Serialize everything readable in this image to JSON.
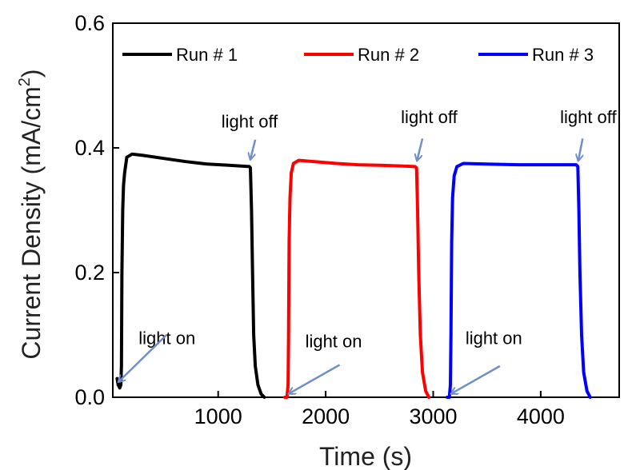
{
  "chart_data": {
    "type": "line",
    "title": "",
    "xlabel": "Time (s)",
    "ylabel": {
      "main": "Current Density (mA/cm",
      "sup": "2",
      "close": ")"
    },
    "xlim": [
      20,
      4730
    ],
    "ylim": [
      0.0,
      0.6
    ],
    "xticks": [
      1000,
      2000,
      3000,
      4000
    ],
    "yticks": [
      0.0,
      0.2,
      0.4,
      0.6
    ],
    "xtick_labels": [
      "1000",
      "2000",
      "3000",
      "4000"
    ],
    "ytick_labels": [
      "0.0",
      "0.2",
      "0.4",
      "0.6"
    ],
    "grid": false,
    "legend_position": "top",
    "series": [
      {
        "name": "Run # 1",
        "color": "#000000",
        "points": [
          [
            60,
            0.03
          ],
          [
            70,
            0.02
          ],
          [
            85,
            0.015
          ],
          [
            95,
            0.02
          ],
          [
            100,
            0.05
          ],
          [
            105,
            0.2
          ],
          [
            112,
            0.3
          ],
          [
            120,
            0.34
          ],
          [
            130,
            0.36
          ],
          [
            150,
            0.385
          ],
          [
            200,
            0.39
          ],
          [
            300,
            0.388
          ],
          [
            500,
            0.383
          ],
          [
            700,
            0.378
          ],
          [
            900,
            0.374
          ],
          [
            1100,
            0.372
          ],
          [
            1290,
            0.37
          ],
          [
            1300,
            0.368
          ],
          [
            1310,
            0.3
          ],
          [
            1320,
            0.2
          ],
          [
            1330,
            0.1
          ],
          [
            1345,
            0.05
          ],
          [
            1370,
            0.02
          ],
          [
            1400,
            0.005
          ],
          [
            1430,
            0.0
          ]
        ]
      },
      {
        "name": "Run # 2",
        "color": "#ff0000",
        "points": [
          [
            1620,
            0.0
          ],
          [
            1640,
            0.0
          ],
          [
            1650,
            0.02
          ],
          [
            1655,
            0.1
          ],
          [
            1660,
            0.25
          ],
          [
            1668,
            0.32
          ],
          [
            1680,
            0.36
          ],
          [
            1700,
            0.375
          ],
          [
            1750,
            0.38
          ],
          [
            1900,
            0.378
          ],
          [
            2100,
            0.375
          ],
          [
            2300,
            0.373
          ],
          [
            2500,
            0.372
          ],
          [
            2700,
            0.371
          ],
          [
            2830,
            0.37
          ],
          [
            2845,
            0.368
          ],
          [
            2855,
            0.3
          ],
          [
            2865,
            0.2
          ],
          [
            2880,
            0.1
          ],
          [
            2900,
            0.04
          ],
          [
            2930,
            0.01
          ],
          [
            2960,
            0.0
          ]
        ]
      },
      {
        "name": "Run # 3",
        "color": "#0000ff",
        "points": [
          [
            3130,
            0.0
          ],
          [
            3150,
            0.0
          ],
          [
            3160,
            0.02
          ],
          [
            3165,
            0.1
          ],
          [
            3172,
            0.25
          ],
          [
            3180,
            0.32
          ],
          [
            3195,
            0.355
          ],
          [
            3220,
            0.37
          ],
          [
            3280,
            0.375
          ],
          [
            3500,
            0.374
          ],
          [
            3800,
            0.373
          ],
          [
            4100,
            0.373
          ],
          [
            4330,
            0.373
          ],
          [
            4345,
            0.37
          ],
          [
            4355,
            0.3
          ],
          [
            4365,
            0.2
          ],
          [
            4380,
            0.1
          ],
          [
            4400,
            0.04
          ],
          [
            4430,
            0.01
          ],
          [
            4460,
            0.0
          ]
        ]
      }
    ],
    "annotations": [
      {
        "text": "light off",
        "x": 1030,
        "y": 0.433,
        "arrow_from": [
          1345,
          0.413
        ],
        "arrow_to": [
          1300,
          0.382
        ]
      },
      {
        "text": "light off",
        "x": 2700,
        "y": 0.44,
        "arrow_from": [
          2900,
          0.415
        ],
        "arrow_to": [
          2850,
          0.38
        ]
      },
      {
        "text": "light off",
        "x": 4180,
        "y": 0.44,
        "arrow_from": [
          4390,
          0.415
        ],
        "arrow_to": [
          4350,
          0.38
        ]
      },
      {
        "text": "light on",
        "x": 260,
        "y": 0.085,
        "arrow_from": [
          520,
          0.1
        ],
        "arrow_to": [
          75,
          0.025
        ]
      },
      {
        "text": "light on",
        "x": 1810,
        "y": 0.08,
        "arrow_from": [
          2130,
          0.052
        ],
        "arrow_to": [
          1660,
          0.006
        ]
      },
      {
        "text": "light on",
        "x": 3300,
        "y": 0.085,
        "arrow_from": [
          3620,
          0.05
        ],
        "arrow_to": [
          3170,
          0.006
        ]
      }
    ],
    "colors": {
      "axis": "#000000",
      "annotation_arrow": "#6f8fc7"
    }
  }
}
